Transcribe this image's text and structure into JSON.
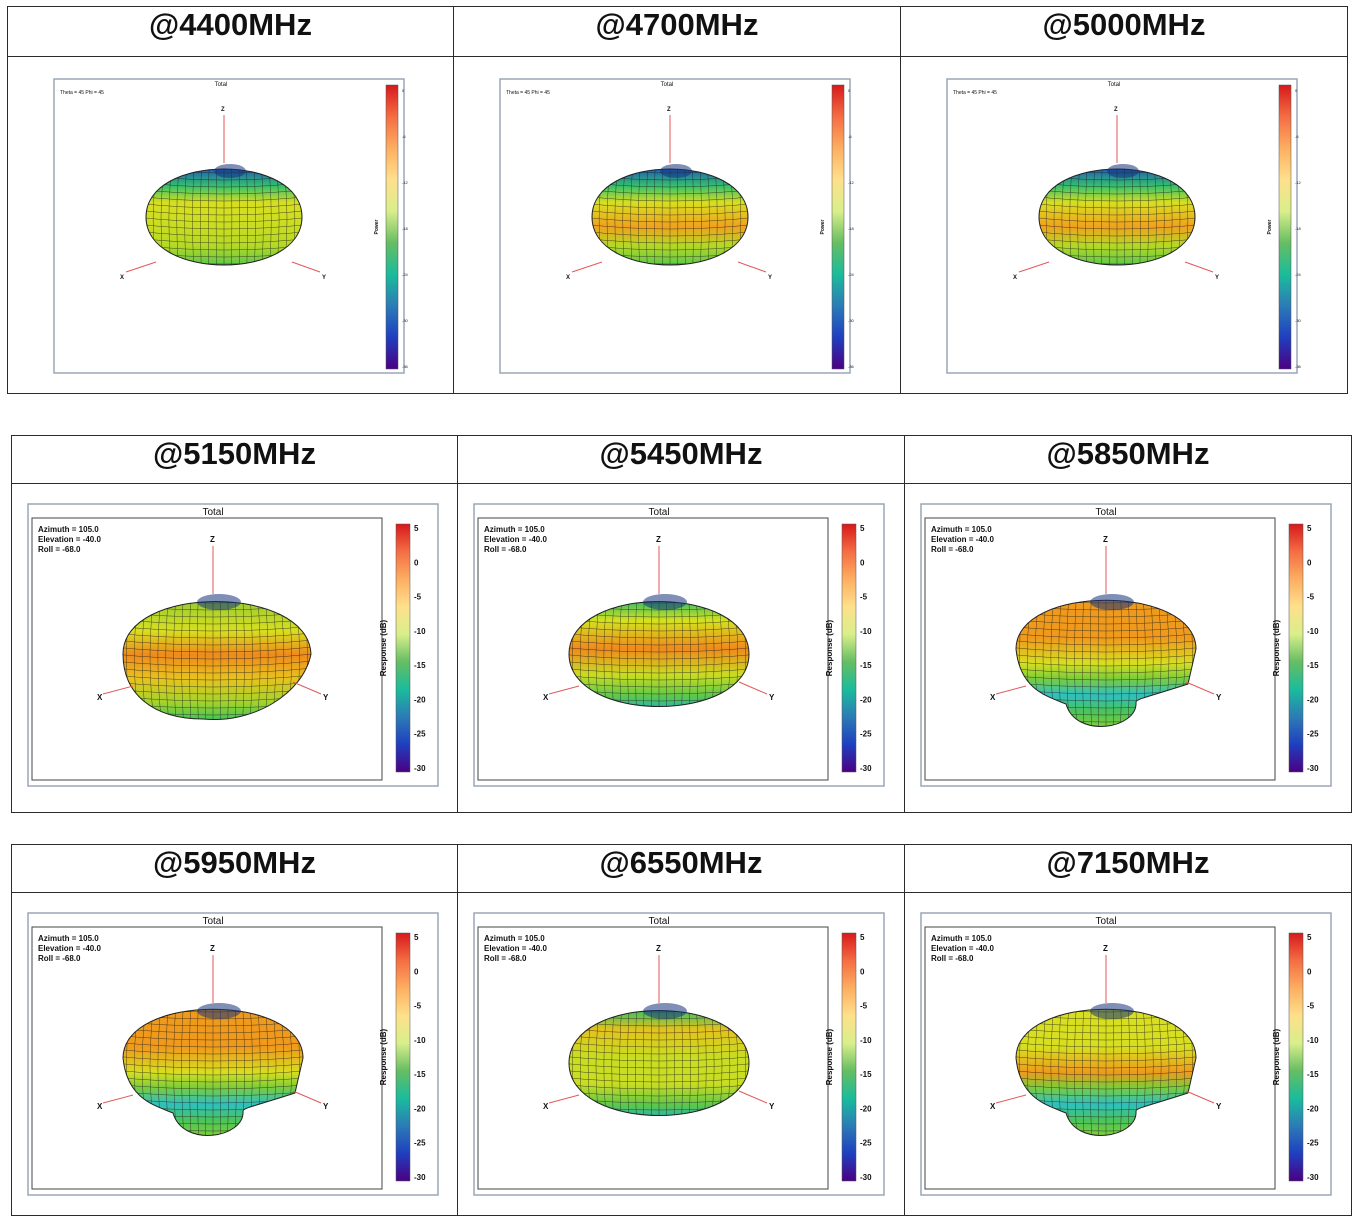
{
  "rows": [
    {
      "style": "small",
      "cells": [
        {
          "frequency": "@4400MHz",
          "plot_title": "Total",
          "view_text": "Theta = 45 Phi = 45",
          "colorbar_label": "Power",
          "axes": {
            "z": "Z",
            "x": "X",
            "y": "Y"
          },
          "shape": "ellipsoid",
          "top_color": "#1d5fb5",
          "band_color": "#c9dd22",
          "ticks": [
            "0",
            "-6",
            "-12",
            "-18",
            "-24",
            "-30",
            "-36"
          ]
        },
        {
          "frequency": "@4700MHz",
          "plot_title": "Total",
          "view_text": "Theta = 45 Phi = 45",
          "colorbar_label": "Power",
          "axes": {
            "z": "Z",
            "x": "X",
            "y": "Y"
          },
          "shape": "ellipsoid",
          "top_color": "#1d5fb5",
          "band_color": "#f0a21e",
          "ticks": [
            "0",
            "-6",
            "-12",
            "-18",
            "-24",
            "-30",
            "-36"
          ]
        },
        {
          "frequency": "@5000MHz",
          "plot_title": "Total",
          "view_text": "Theta = 45 Phi = 45",
          "colorbar_label": "Power",
          "axes": {
            "z": "Z",
            "x": "X",
            "y": "Y"
          },
          "shape": "ellipsoid",
          "top_color": "#1d5fb5",
          "band_color": "#f0a21e",
          "ticks": [
            "0",
            "-6",
            "-12",
            "-18",
            "-24",
            "-30",
            "-36"
          ]
        }
      ]
    },
    {
      "style": "large",
      "cells": [
        {
          "frequency": "@5150MHz",
          "plot_title": "Total",
          "azimuth": "Azimuth = 105.0",
          "elevation": "Elevation = -40.0",
          "roll": "Roll = -68.0",
          "colorbar_label": "Response (dB)",
          "axes": {
            "z": "Z",
            "x": "X",
            "y": "Y"
          },
          "shape": "wide",
          "top_color": "#9acd32",
          "band_color": "#ef8a1c",
          "ticks": [
            "5",
            "0",
            "-5",
            "-10",
            "-15",
            "-20",
            "-25",
            "-30"
          ]
        },
        {
          "frequency": "@5450MHz",
          "plot_title": "Total",
          "azimuth": "Azimuth = 105.0",
          "elevation": "Elevation = -40.0",
          "roll": "Roll = -68.0",
          "colorbar_label": "Response (dB)",
          "axes": {
            "z": "Z",
            "x": "X",
            "y": "Y"
          },
          "shape": "round",
          "top_color": "#d4e21e",
          "band_color": "#ef8a1c",
          "ticks": [
            "5",
            "0",
            "-5",
            "-10",
            "-15",
            "-20",
            "-25",
            "-30"
          ]
        },
        {
          "frequency": "@5850MHz",
          "plot_title": "Total",
          "azimuth": "Azimuth = 105.0",
          "elevation": "Elevation = -40.0",
          "roll": "Roll = -68.0",
          "colorbar_label": "Response (dB)",
          "axes": {
            "z": "Z",
            "x": "X",
            "y": "Y"
          },
          "shape": "mushroom",
          "top_color": "#ef9a1c",
          "band_color": "#d8de20",
          "ticks": [
            "5",
            "0",
            "-5",
            "-10",
            "-15",
            "-20",
            "-25",
            "-30"
          ]
        }
      ]
    },
    {
      "style": "large",
      "cells": [
        {
          "frequency": "@5950MHz",
          "plot_title": "Total",
          "azimuth": "Azimuth = 105.0",
          "elevation": "Elevation = -40.0",
          "roll": "Roll = -68.0",
          "colorbar_label": "Response (dB)",
          "axes": {
            "z": "Z",
            "x": "X",
            "y": "Y"
          },
          "shape": "mushroom",
          "top_color": "#ef9a1c",
          "band_color": "#d8de20",
          "ticks": [
            "5",
            "0",
            "-5",
            "-10",
            "-15",
            "-20",
            "-25",
            "-30"
          ]
        },
        {
          "frequency": "@6550MHz",
          "plot_title": "Total",
          "azimuth": "Azimuth = 105.0",
          "elevation": "Elevation = -40.0",
          "roll": "Roll = -68.0",
          "colorbar_label": "Response (dB)",
          "axes": {
            "z": "Z",
            "x": "X",
            "y": "Y"
          },
          "shape": "round",
          "top_color": "#e4c21c",
          "band_color": "#c9dd22",
          "ticks": [
            "5",
            "0",
            "-5",
            "-10",
            "-15",
            "-20",
            "-25",
            "-30"
          ]
        },
        {
          "frequency": "@7150MHz",
          "plot_title": "Total",
          "azimuth": "Azimuth = 105.0",
          "elevation": "Elevation = -40.0",
          "roll": "Roll = -68.0",
          "colorbar_label": "Response (dB)",
          "axes": {
            "z": "Z",
            "x": "X",
            "y": "Y"
          },
          "shape": "mushroom",
          "top_color": "#d8de20",
          "band_color": "#ef9a1c",
          "ticks": [
            "5",
            "0",
            "-5",
            "-10",
            "-15",
            "-20",
            "-25",
            "-30"
          ]
        }
      ]
    }
  ]
}
